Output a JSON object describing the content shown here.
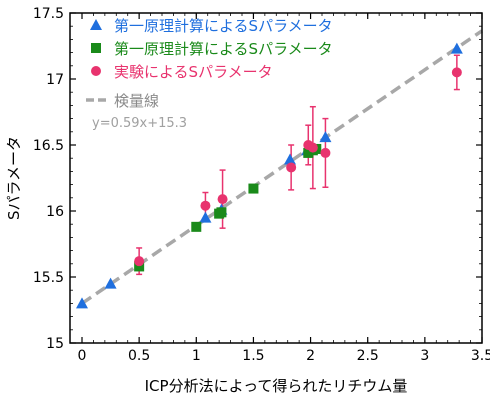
{
  "chart_data": {
    "type": "scatter",
    "xlabel": "ICP分析法によって得られたリチウム量",
    "ylabel": "Sパラメータ",
    "xlim": [
      0,
      3.5
    ],
    "ylim": [
      15,
      17.5
    ],
    "x_ticks": [
      0,
      0.5,
      1,
      1.5,
      2,
      2.5,
      3,
      3.5
    ],
    "y_ticks": [
      15,
      15.5,
      16,
      16.5,
      17,
      17.5
    ],
    "x_tick_labels": [
      "0",
      "0.5",
      "1",
      "1.5",
      "2",
      "2.5",
      "3",
      "3.5"
    ],
    "y_tick_labels": [
      "15",
      "15.5",
      "16",
      "16.5",
      "17",
      "17.5"
    ],
    "grid": false,
    "legend_position": "top-left",
    "series": [
      {
        "name": "第一原理計算によるSパラメータ",
        "marker": "triangle",
        "color": "#1f6fde",
        "points": [
          {
            "x": 0.0,
            "y": 15.3
          },
          {
            "x": 0.25,
            "y": 15.45
          },
          {
            "x": 1.08,
            "y": 15.95
          },
          {
            "x": 1.22,
            "y": 16.01
          },
          {
            "x": 1.82,
            "y": 16.39
          },
          {
            "x": 1.97,
            "y": 16.46
          },
          {
            "x": 2.13,
            "y": 16.56
          },
          {
            "x": 3.28,
            "y": 17.23
          }
        ]
      },
      {
        "name": "第一原理計算によるSパラメータ",
        "marker": "square",
        "color": "#1a8a1a",
        "points": [
          {
            "x": 0.5,
            "y": 15.58
          },
          {
            "x": 1.0,
            "y": 15.88
          },
          {
            "x": 1.2,
            "y": 15.98
          },
          {
            "x": 1.22,
            "y": 15.99
          },
          {
            "x": 1.5,
            "y": 16.17
          },
          {
            "x": 1.98,
            "y": 16.44
          },
          {
            "x": 2.02,
            "y": 16.46
          },
          {
            "x": 2.05,
            "y": 16.47
          }
        ]
      },
      {
        "name": "実験によるSパラメータ",
        "marker": "circle",
        "color": "#e8336e",
        "points": [
          {
            "x": 0.5,
            "y": 15.62,
            "err": 0.1
          },
          {
            "x": 1.08,
            "y": 16.04,
            "err": 0.1
          },
          {
            "x": 1.23,
            "y": 16.09,
            "err": 0.22
          },
          {
            "x": 1.83,
            "y": 16.33,
            "err": 0.17
          },
          {
            "x": 1.98,
            "y": 16.5,
            "err": 0.15
          },
          {
            "x": 2.02,
            "y": 16.48,
            "err": 0.31
          },
          {
            "x": 2.13,
            "y": 16.44,
            "err": 0.26
          },
          {
            "x": 3.28,
            "y": 17.05,
            "err": 0.13
          }
        ]
      }
    ],
    "fit_line": {
      "name": "検量線",
      "equation": "y=0.59x+15.3",
      "slope": 0.59,
      "intercept": 15.3,
      "style": "dashed",
      "color": "#a8a8a8"
    }
  }
}
